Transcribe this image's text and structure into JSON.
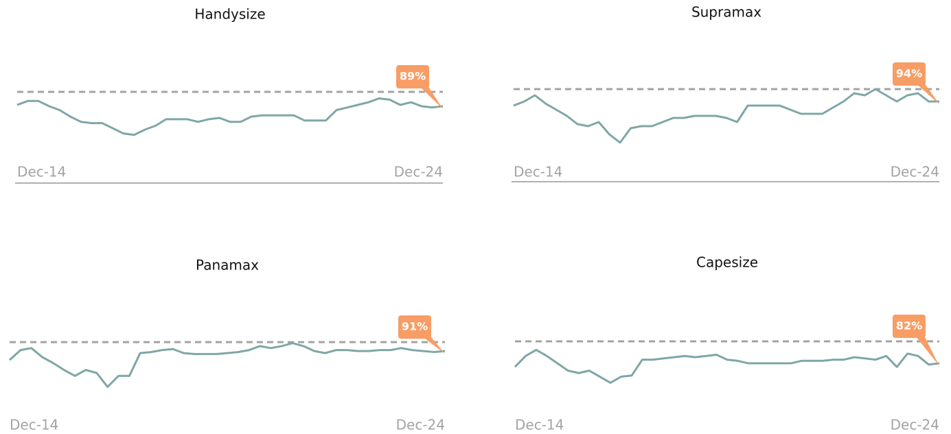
{
  "chart_data": [
    {
      "type": "line",
      "title": "Handysize",
      "x": [
        0,
        3,
        6,
        9,
        12,
        15,
        18,
        21,
        24,
        27,
        30,
        33,
        36,
        39,
        42,
        45,
        48,
        51,
        54,
        57,
        60,
        63,
        66,
        69,
        72,
        75,
        78,
        81,
        84,
        87,
        90,
        93,
        96,
        99,
        102,
        105,
        108,
        111,
        114,
        117,
        120
      ],
      "values": [
        90,
        93,
        93,
        89,
        86,
        81,
        77,
        76,
        76,
        72,
        68,
        67,
        71,
        74,
        79,
        79,
        79,
        77,
        79,
        80,
        77,
        77,
        81,
        82,
        82,
        82,
        82,
        78,
        78,
        78,
        86,
        88,
        90,
        92,
        95,
        94,
        90,
        92,
        89,
        88,
        89
      ],
      "color": "#7fa6a6",
      "xlim": [
        0,
        120
      ],
      "ylim": [
        60,
        105
      ],
      "xticks": [
        {
          "value": 0,
          "label": "Dec-14"
        },
        {
          "value": 120,
          "label": "Dec-24"
        }
      ],
      "reference": 100,
      "annotation": {
        "value": 89,
        "label": "89%"
      }
    },
    {
      "type": "line",
      "title": "Supramax",
      "x": [
        0,
        3,
        6,
        9,
        12,
        15,
        18,
        21,
        24,
        27,
        30,
        33,
        36,
        39,
        42,
        45,
        48,
        51,
        54,
        57,
        60,
        63,
        66,
        69,
        72,
        75,
        78,
        81,
        84,
        87,
        90,
        93,
        96,
        99,
        102,
        105,
        108,
        111,
        114,
        117,
        120
      ],
      "values": [
        92,
        94,
        97,
        93,
        90,
        87,
        83,
        82,
        84,
        78,
        74,
        81,
        82,
        82,
        84,
        86,
        86,
        87,
        87,
        87,
        86,
        84,
        92,
        92,
        92,
        92,
        90,
        88,
        88,
        88,
        91,
        94,
        98,
        97,
        100,
        97,
        94,
        97,
        98,
        94,
        94
      ],
      "color": "#7fa6a6",
      "xlim": [
        0,
        120
      ],
      "ylim": [
        70,
        105
      ],
      "xticks": [
        {
          "value": 0,
          "label": "Dec-14"
        },
        {
          "value": 120,
          "label": "Dec-24"
        }
      ],
      "reference": 100,
      "annotation": {
        "value": 94,
        "label": "94%"
      }
    },
    {
      "type": "line",
      "title": "Panamax",
      "x": [
        0,
        3,
        6,
        9,
        12,
        15,
        18,
        21,
        24,
        27,
        30,
        33,
        36,
        39,
        42,
        45,
        48,
        51,
        54,
        57,
        60,
        63,
        66,
        69,
        72,
        75,
        78,
        81,
        84,
        87,
        90,
        93,
        96,
        99,
        102,
        105,
        108,
        111,
        114,
        117,
        120
      ],
      "values": [
        82,
        92,
        94,
        85,
        79,
        72,
        66,
        72,
        69,
        55,
        66,
        66,
        89,
        90,
        92,
        93,
        89,
        88,
        88,
        88,
        89,
        90,
        92,
        96,
        94,
        96,
        99,
        96,
        91,
        89,
        92,
        92,
        91,
        91,
        92,
        92,
        94,
        92,
        91,
        90,
        91
      ],
      "color": "#7fa6a6",
      "xlim": [
        0,
        120
      ],
      "ylim": [
        50,
        105
      ],
      "xticks": [
        {
          "value": 0,
          "label": "Dec-14"
        },
        {
          "value": 120,
          "label": "Dec-24"
        }
      ],
      "reference": 100,
      "annotation": {
        "value": 91,
        "label": "91%"
      }
    },
    {
      "type": "line",
      "title": "Capesize",
      "x": [
        0,
        3,
        6,
        9,
        12,
        15,
        18,
        21,
        24,
        27,
        30,
        33,
        36,
        39,
        42,
        45,
        48,
        51,
        54,
        57,
        60,
        63,
        66,
        69,
        72,
        75,
        78,
        81,
        84,
        87,
        90,
        93,
        96,
        99,
        102,
        105,
        108,
        111,
        114,
        117,
        120
      ],
      "values": [
        79,
        88,
        93,
        88,
        82,
        76,
        74,
        76,
        71,
        66,
        71,
        72,
        85,
        85,
        86,
        87,
        88,
        87,
        88,
        89,
        85,
        84,
        82,
        82,
        82,
        82,
        82,
        84,
        84,
        84,
        85,
        85,
        87,
        86,
        85,
        88,
        79,
        90,
        88,
        81,
        82
      ],
      "color": "#7fa6a6",
      "xlim": [
        0,
        120
      ],
      "ylim": [
        60,
        105
      ],
      "xticks": [
        {
          "value": 0,
          "label": "Dec-14"
        },
        {
          "value": 120,
          "label": "Dec-24"
        }
      ],
      "reference": 100,
      "annotation": {
        "value": 82,
        "label": "82%"
      }
    }
  ]
}
